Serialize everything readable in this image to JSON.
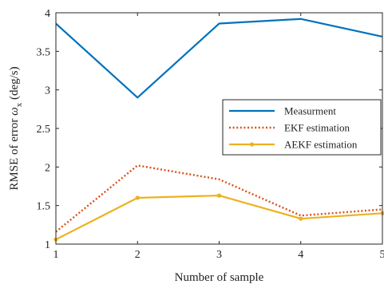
{
  "chart_data": {
    "type": "line",
    "xlabel": "Number of sample",
    "ylabel_prefix": "RMSE of error ",
    "ylabel_symbol": "ω",
    "ylabel_subscript": "x",
    "ylabel_unit": " (deg/s)",
    "x": [
      1,
      2,
      3,
      4,
      5
    ],
    "xlim": [
      1,
      5
    ],
    "ylim": [
      1,
      4
    ],
    "xticks": [
      "1",
      "2",
      "3",
      "4",
      "5"
    ],
    "yticks": [
      "1",
      "1.5",
      "2",
      "2.5",
      "3",
      "3.5",
      "4"
    ],
    "grid": false,
    "legend_position": "center-right",
    "series": [
      {
        "name": "Measurment",
        "values": [
          3.86,
          2.9,
          3.86,
          3.92,
          3.69
        ],
        "color": "#0072BD",
        "style": "solid",
        "marker": "none"
      },
      {
        "name": "EKF estimation",
        "values": [
          1.16,
          2.02,
          1.84,
          1.37,
          1.45
        ],
        "color": "#D95319",
        "style": "dotted",
        "marker": "none"
      },
      {
        "name": "AEKF estimation",
        "values": [
          1.06,
          1.6,
          1.63,
          1.33,
          1.4
        ],
        "color": "#EDB120",
        "style": "solid",
        "marker": "dot"
      }
    ]
  }
}
